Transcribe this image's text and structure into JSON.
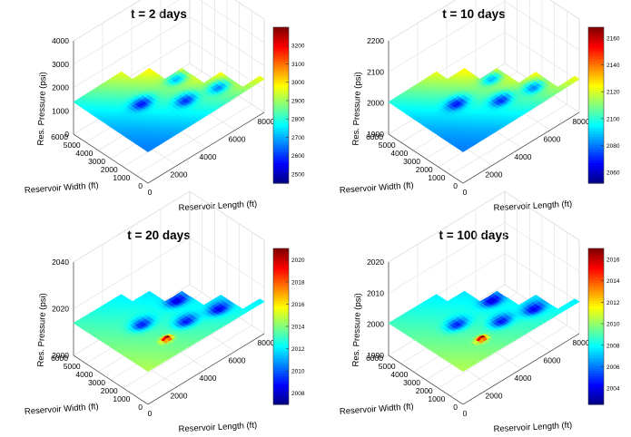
{
  "chart_data": [
    {
      "type": "surface",
      "title": "t = 2 days",
      "xlabel": "Reservoir Length (ft)",
      "ylabel": "Reservoir Width (ft)",
      "zlabel": "Res. Pressure (psi)",
      "x_ticks": [
        "0",
        "2000",
        "4000",
        "6000",
        "8000"
      ],
      "y_ticks": [
        "0",
        "1000",
        "2000",
        "3000",
        "4000",
        "5000",
        "6000"
      ],
      "z_ticks": [
        "0",
        "1000",
        "2000",
        "3000",
        "4000"
      ],
      "zlim": [
        0,
        4000
      ],
      "colorbar": {
        "ticks": [
          "2500",
          "2600",
          "2700",
          "2800",
          "2900",
          "3000",
          "3100",
          "3200"
        ],
        "range": [
          2450,
          3300
        ],
        "colormap": "jet"
      },
      "surface": {
        "min_value": 2450,
        "max_value": 3300,
        "low_wells": 4,
        "high_well": false,
        "gradient": "increases toward the far corner"
      }
    },
    {
      "type": "surface",
      "title": "t = 10 days",
      "xlabel": "Reservoir Length (ft)",
      "ylabel": "Reservoir Width (ft)",
      "zlabel": "Res. Pressure (psi)",
      "x_ticks": [
        "0",
        "2000",
        "4000",
        "6000",
        "8000"
      ],
      "y_ticks": [
        "0",
        "1000",
        "2000",
        "3000",
        "4000",
        "5000",
        "6000"
      ],
      "z_ticks": [
        "1900",
        "2000",
        "2100",
        "2200"
      ],
      "zlim": [
        1900,
        2200
      ],
      "colorbar": {
        "ticks": [
          "2060",
          "2080",
          "2100",
          "2120",
          "2140",
          "2160"
        ],
        "range": [
          2052,
          2168
        ],
        "colormap": "jet"
      },
      "surface": {
        "min_value": 2052,
        "max_value": 2168,
        "low_wells": 4,
        "high_well": false,
        "gradient": "increases toward the far corner"
      }
    },
    {
      "type": "surface",
      "title": "t = 20 days",
      "xlabel": "Reservoir Length (ft)",
      "ylabel": "Reservoir Width (ft)",
      "zlabel": "Res. Pressure (psi)",
      "x_ticks": [
        "0",
        "2000",
        "4000",
        "6000",
        "8000"
      ],
      "y_ticks": [
        "0",
        "1000",
        "2000",
        "3000",
        "4000",
        "5000",
        "6000"
      ],
      "z_ticks": [
        "2000",
        "2020",
        "2040"
      ],
      "zlim": [
        2000,
        2040
      ],
      "colorbar": {
        "ticks": [
          "2008",
          "2010",
          "2012",
          "2014",
          "2016",
          "2018",
          "2020"
        ],
        "range": [
          2007,
          2021
        ],
        "colormap": "jet"
      },
      "surface": {
        "min_value": 2007,
        "max_value": 2021,
        "low_wells": 4,
        "high_well": true,
        "gradient": "decreases toward the far corner"
      }
    },
    {
      "type": "surface",
      "title": "t = 100 days",
      "xlabel": "Reservoir Length (ft)",
      "ylabel": "Reservoir Width (ft)",
      "zlabel": "Res. Pressure (psi)",
      "x_ticks": [
        "0",
        "2000",
        "4000",
        "6000",
        "8000"
      ],
      "y_ticks": [
        "0",
        "1000",
        "2000",
        "3000",
        "4000",
        "5000",
        "6000"
      ],
      "z_ticks": [
        "1990",
        "2000",
        "2010",
        "2020"
      ],
      "zlim": [
        1990,
        2020
      ],
      "colorbar": {
        "ticks": [
          "2004",
          "2006",
          "2008",
          "2010",
          "2012",
          "2014",
          "2016"
        ],
        "range": [
          2002.5,
          2017
        ],
        "colormap": "jet"
      },
      "surface": {
        "min_value": 2002.5,
        "max_value": 2017,
        "low_wells": 4,
        "high_well": true,
        "gradient": "decreases toward the far corner"
      }
    }
  ]
}
